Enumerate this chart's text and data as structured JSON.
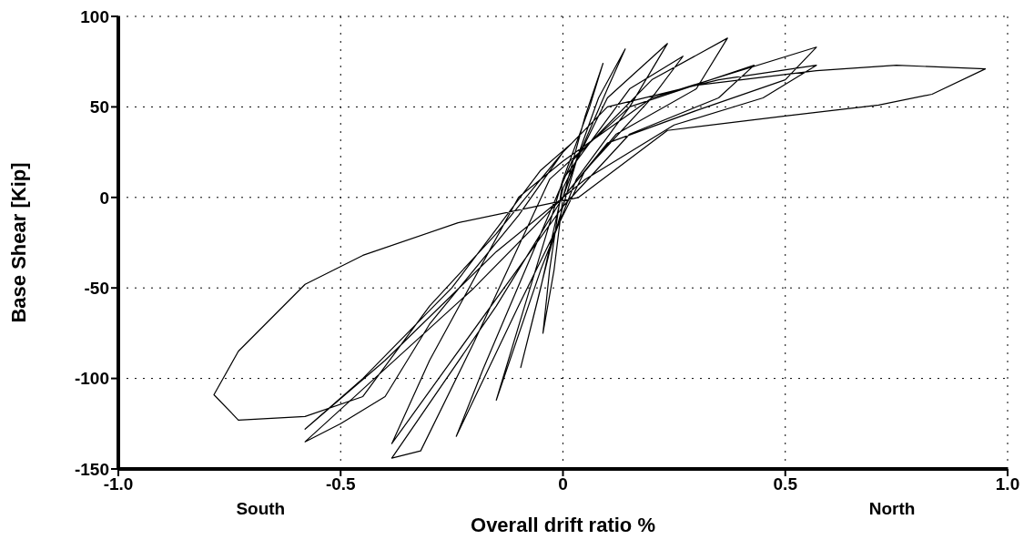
{
  "chart_data": {
    "type": "line",
    "xlabel": "Overall drift ratio %",
    "ylabel": "Base Shear [Kip]",
    "xlim": [
      -1.0,
      1.0
    ],
    "xticks": [
      {
        "value": -1.0,
        "label": "-1.0"
      },
      {
        "value": -0.5,
        "label": "-0.5"
      },
      0,
      {
        "value": 0.5,
        "label": "0.5"
      },
      {
        "value": 1.0,
        "label": "1.0"
      }
    ],
    "ylim": [
      -150,
      100
    ],
    "yticks": [
      -150,
      -100,
      -50,
      0,
      50,
      100
    ],
    "grid": true,
    "line_style": "solid",
    "marker": "none",
    "annotations": [
      "South",
      "North"
    ],
    "series": [
      {
        "color": "#000000",
        "x": [
          0,
          0.05,
          0.09,
          0.06,
          0.0,
          -0.03,
          -0.045,
          -0.02,
          0.0,
          0.08,
          0.14,
          0.1,
          0.03,
          -0.03,
          -0.095,
          -0.05,
          0.0,
          0.1,
          0.235,
          0.15,
          0.03,
          -0.05,
          -0.15,
          -0.08,
          0.0,
          0.15,
          0.27,
          0.2,
          0.05,
          -0.1,
          -0.24,
          -0.18,
          -0.05,
          0.02,
          0.2,
          0.37,
          0.3,
          0.12,
          0.0,
          -0.15,
          -0.385,
          -0.32,
          -0.2,
          -0.03,
          0.15,
          0.43,
          0.35,
          0.15,
          0.0,
          -0.25,
          -0.385,
          -0.3,
          -0.1,
          0.0,
          0.2,
          0.57,
          0.5,
          0.3,
          0.1,
          0.0,
          -0.2,
          -0.58,
          -0.5,
          -0.4,
          -0.3,
          -0.1,
          0.0,
          0.1,
          0.35,
          0.57,
          0.45,
          0.25,
          0.05,
          -0.15,
          -0.4,
          -0.58,
          -0.45,
          -0.25,
          -0.05,
          0.02,
          0.1,
          0.3,
          0.57,
          0.75,
          0.95,
          0.83,
          0.71,
          0.5,
          0.235,
          0.035,
          -0.236,
          -0.45,
          -0.58,
          -0.73,
          -0.785,
          -0.73,
          -0.58,
          -0.45,
          -0.3,
          -0.15,
          -0.05,
          0.0
        ],
        "values": [
          0,
          45,
          74,
          50,
          10,
          -40,
          -75,
          -40,
          0,
          55,
          82,
          60,
          20,
          -30,
          -94,
          -50,
          5,
          55,
          85,
          50,
          10,
          -40,
          -112,
          -55,
          10,
          60,
          78,
          55,
          15,
          -60,
          -132,
          -95,
          -20,
          20,
          65,
          88,
          60,
          35,
          0,
          -60,
          -144,
          -140,
          -80,
          10,
          50,
          73,
          55,
          35,
          -5,
          -90,
          -136,
          -90,
          0,
          20,
          55,
          83,
          65,
          48,
          30,
          0,
          -50,
          -135,
          -125,
          -110,
          -70,
          -10,
          25,
          50,
          65,
          73,
          55,
          40,
          10,
          -30,
          -90,
          -128,
          -100,
          -50,
          15,
          30,
          50,
          62,
          70,
          73,
          71,
          57,
          51,
          45,
          37,
          0,
          -14,
          -32,
          -48,
          -85,
          -109,
          -123,
          -121,
          -110,
          -60,
          -20,
          10,
          25
        ]
      }
    ]
  }
}
